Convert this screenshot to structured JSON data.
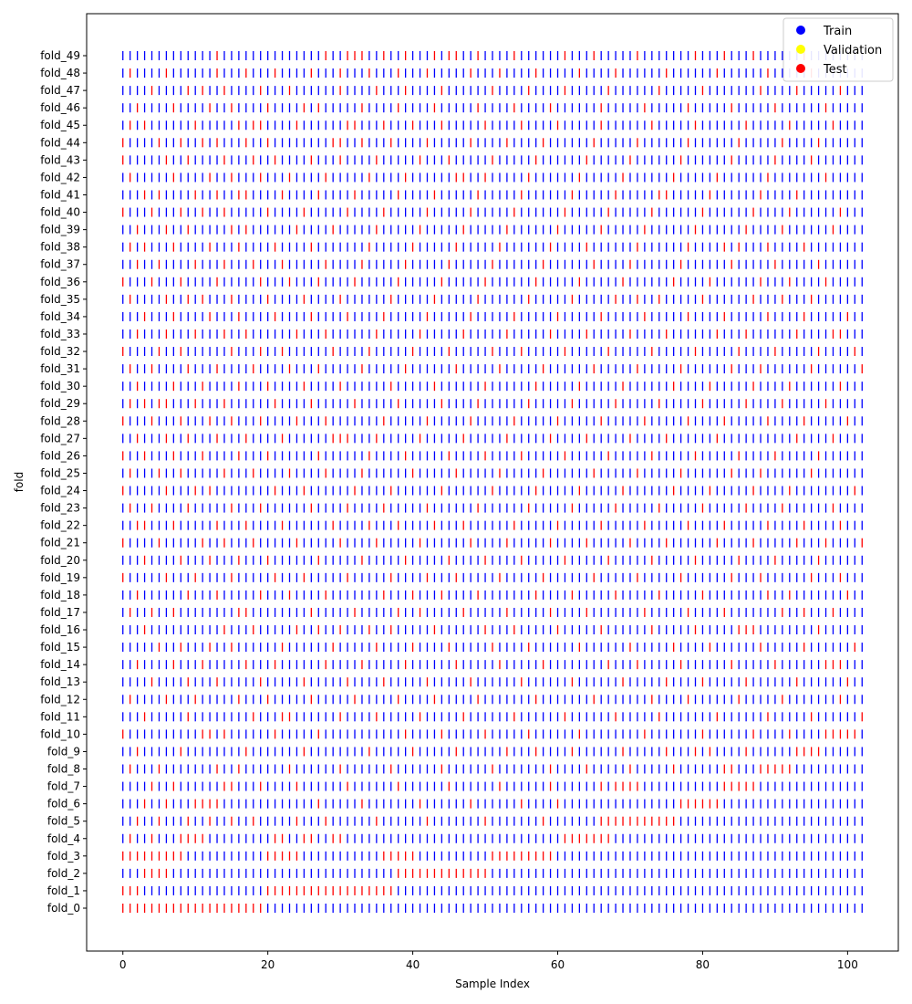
{
  "chart_data": {
    "type": "scatter",
    "marker": "vertical-line",
    "title": "",
    "xlabel": "Sample Index",
    "ylabel": "fold",
    "xlim": [
      -5,
      107
    ],
    "xticks": [
      0,
      20,
      40,
      60,
      80,
      100
    ],
    "n_samples": 103,
    "grid": false,
    "legend": {
      "placement": "top-right",
      "entries": [
        {
          "label": "Train",
          "color": "#0000ff"
        },
        {
          "label": "Validation",
          "color": "#ffff00"
        },
        {
          "label": "Test",
          "color": "#ff0000"
        }
      ]
    },
    "colors": {
      "train": "#0000ff",
      "validation": "#ffff00",
      "test": "#ff0000"
    },
    "categories": [
      "fold_0",
      "fold_1",
      "fold_2",
      "fold_3",
      "fold_4",
      "fold_5",
      "fold_6",
      "fold_7",
      "fold_8",
      "fold_9",
      "fold_10",
      "fold_11",
      "fold_12",
      "fold_13",
      "fold_14",
      "fold_15",
      "fold_16",
      "fold_17",
      "fold_18",
      "fold_19",
      "fold_20",
      "fold_21",
      "fold_22",
      "fold_23",
      "fold_24",
      "fold_25",
      "fold_26",
      "fold_27",
      "fold_28",
      "fold_29",
      "fold_30",
      "fold_31",
      "fold_32",
      "fold_33",
      "fold_34",
      "fold_35",
      "fold_36",
      "fold_37",
      "fold_38",
      "fold_39",
      "fold_40",
      "fold_41",
      "fold_42",
      "fold_43",
      "fold_44",
      "fold_45",
      "fold_46",
      "fold_47",
      "fold_48",
      "fold_49"
    ],
    "test_indices": [
      [
        0,
        1,
        2,
        3,
        4,
        5,
        6,
        7,
        8,
        9,
        10,
        11,
        12,
        13,
        14,
        15,
        16,
        17,
        18,
        19
      ],
      [
        0,
        1,
        2,
        20,
        21,
        22,
        23,
        24,
        25,
        26,
        27,
        28,
        29,
        30,
        31,
        32,
        33,
        34,
        35,
        36,
        37
      ],
      [
        3,
        4,
        5,
        6,
        38,
        39,
        40,
        41,
        42,
        43,
        44,
        45,
        46,
        47,
        48,
        49,
        50
      ],
      [
        0,
        1,
        2,
        3,
        4,
        5,
        6,
        7,
        8,
        20,
        21,
        22,
        23,
        24,
        36,
        37,
        38,
        39,
        40,
        51,
        52,
        53,
        54,
        55,
        56,
        57,
        58,
        59
      ],
      [
        1,
        4,
        8,
        9,
        10,
        11,
        21,
        22,
        25,
        26,
        29,
        30,
        61,
        62,
        63,
        64,
        65,
        66,
        67
      ],
      [
        2,
        5,
        9,
        12,
        15,
        18,
        24,
        28,
        35,
        42,
        50,
        58,
        66,
        67,
        68,
        69,
        70,
        71,
        72,
        73,
        74,
        75,
        76
      ],
      [
        3,
        6,
        10,
        11,
        12,
        13,
        27,
        33,
        41,
        48,
        55,
        60,
        77,
        78,
        79,
        80,
        81,
        82
      ],
      [
        4,
        7,
        14,
        15,
        19,
        24,
        31,
        38,
        45,
        52,
        59,
        66,
        68,
        69,
        70,
        71,
        83,
        84,
        85,
        86,
        87
      ],
      [
        1,
        5,
        13,
        16,
        23,
        30,
        37,
        44,
        51,
        59,
        64,
        70,
        76,
        83,
        84,
        88,
        89,
        90,
        91,
        92
      ],
      [
        2,
        8,
        17,
        25,
        34,
        40,
        46,
        53,
        57,
        62,
        69,
        75,
        79,
        81,
        86,
        93,
        94,
        95,
        96
      ],
      [
        0,
        11,
        12,
        14,
        21,
        27,
        39,
        44,
        50,
        56,
        63,
        72,
        80,
        87,
        92,
        97,
        98,
        99,
        100,
        101
      ],
      [
        3,
        9,
        18,
        22,
        23,
        30,
        35,
        41,
        47,
        54,
        61,
        68,
        74,
        82,
        89,
        95,
        102
      ],
      [
        1,
        6,
        10,
        16,
        20,
        26,
        32,
        38,
        43,
        49,
        57,
        65,
        73,
        78,
        85,
        91,
        99
      ],
      [
        4,
        9,
        13,
        19,
        25,
        31,
        36,
        42,
        48,
        55,
        62,
        69,
        75,
        80,
        86,
        93,
        100
      ],
      [
        2,
        7,
        11,
        17,
        21,
        28,
        33,
        39,
        46,
        52,
        58,
        67,
        71,
        77,
        84,
        90,
        97,
        98,
        99
      ],
      [
        5,
        8,
        12,
        15,
        22,
        29,
        35,
        40,
        45,
        51,
        56,
        63,
        70,
        76,
        81,
        88,
        94,
        101
      ],
      [
        3,
        14,
        18,
        24,
        27,
        30,
        34,
        37,
        43,
        50,
        54,
        60,
        66,
        73,
        79,
        85,
        86,
        87,
        96
      ],
      [
        1,
        4,
        7,
        16,
        17,
        26,
        32,
        38,
        41,
        47,
        53,
        59,
        64,
        72,
        78,
        83,
        91,
        94,
        98
      ],
      [
        2,
        9,
        13,
        19,
        23,
        28,
        36,
        40,
        44,
        49,
        57,
        62,
        68,
        74,
        80,
        89,
        92,
        100
      ],
      [
        0,
        6,
        10,
        15,
        21,
        25,
        31,
        37,
        42,
        46,
        52,
        58,
        65,
        71,
        77,
        84,
        88,
        95,
        99
      ],
      [
        3,
        8,
        12,
        16,
        20,
        27,
        33,
        39,
        45,
        50,
        55,
        61,
        67,
        73,
        79,
        85,
        90,
        96
      ],
      [
        0,
        5,
        11,
        14,
        18,
        24,
        30,
        35,
        41,
        48,
        53,
        59,
        64,
        70,
        75,
        82,
        87,
        93,
        97,
        102
      ],
      [
        2,
        3,
        7,
        13,
        17,
        22,
        29,
        34,
        38,
        43,
        47,
        54,
        60,
        66,
        72,
        78,
        83,
        89,
        94,
        99
      ],
      [
        1,
        4,
        9,
        15,
        19,
        26,
        31,
        36,
        42,
        49,
        56,
        62,
        68,
        74,
        80,
        86,
        91,
        98
      ],
      [
        0,
        6,
        10,
        12,
        21,
        25,
        32,
        37,
        44,
        51,
        57,
        63,
        69,
        76,
        81,
        87,
        92,
        101
      ],
      [
        1,
        5,
        8,
        14,
        18,
        23,
        28,
        33,
        40,
        46,
        52,
        58,
        65,
        71,
        77,
        84,
        88,
        95
      ],
      [
        0,
        3,
        7,
        11,
        16,
        20,
        27,
        34,
        39,
        45,
        50,
        55,
        61,
        67,
        73,
        79,
        85,
        90,
        96
      ],
      [
        2,
        6,
        9,
        13,
        17,
        22,
        29,
        30,
        31,
        35,
        41,
        47,
        53,
        59,
        64,
        70,
        75,
        82,
        93,
        98
      ],
      [
        0,
        4,
        8,
        12,
        15,
        19,
        24,
        28,
        36,
        42,
        48,
        54,
        60,
        66,
        72,
        78,
        83,
        89,
        94,
        100
      ],
      [
        1,
        3,
        5,
        6,
        10,
        14,
        21,
        26,
        32,
        38,
        44,
        49,
        56,
        62,
        68,
        74,
        80,
        86,
        91,
        97
      ],
      [
        2,
        7,
        11,
        16,
        20,
        25,
        30,
        37,
        43,
        50,
        57,
        63,
        69,
        76,
        81,
        87,
        92,
        99
      ],
      [
        1,
        4,
        9,
        13,
        18,
        23,
        27,
        33,
        39,
        46,
        52,
        58,
        65,
        71,
        77,
        84,
        88,
        95,
        102
      ],
      [
        0,
        5,
        8,
        15,
        19,
        22,
        29,
        34,
        40,
        45,
        51,
        55,
        61,
        67,
        73,
        79,
        85,
        90,
        96,
        101
      ],
      [
        2,
        6,
        10,
        14,
        17,
        24,
        28,
        35,
        41,
        47,
        53,
        59,
        64,
        70,
        75,
        82,
        86,
        93,
        98,
        99
      ],
      [
        3,
        7,
        12,
        16,
        21,
        26,
        31,
        36,
        42,
        48,
        54,
        60,
        66,
        72,
        78,
        83,
        89,
        94,
        100
      ],
      [
        1,
        6,
        9,
        11,
        15,
        20,
        25,
        30,
        37,
        43,
        49,
        56,
        62,
        68,
        71,
        74,
        80,
        87,
        91,
        95
      ],
      [
        0,
        4,
        8,
        13,
        19,
        23,
        27,
        32,
        38,
        44,
        50,
        57,
        63,
        69,
        76,
        81,
        88,
        92,
        97
      ],
      [
        2,
        5,
        10,
        14,
        18,
        22,
        28,
        33,
        39,
        45,
        51,
        58,
        65,
        70,
        77,
        84,
        90,
        96
      ],
      [
        1,
        3,
        7,
        12,
        16,
        21,
        26,
        34,
        40,
        46,
        52,
        59,
        64,
        71,
        78,
        83,
        85,
        89,
        94
      ],
      [
        2,
        6,
        9,
        15,
        17,
        24,
        29,
        35,
        41,
        47,
        53,
        60,
        66,
        72,
        79,
        86,
        91,
        98
      ],
      [
        0,
        4,
        8,
        11,
        14,
        20,
        25,
        31,
        36,
        42,
        48,
        54,
        61,
        67,
        73,
        80,
        87,
        92,
        99
      ],
      [
        3,
        5,
        10,
        13,
        16,
        17,
        22,
        27,
        32,
        38,
        43,
        49,
        55,
        62,
        68,
        74,
        75,
        81,
        88,
        93
      ],
      [
        1,
        7,
        12,
        15,
        19,
        23,
        28,
        34,
        39,
        46,
        47,
        50,
        56,
        63,
        69,
        76,
        82,
        89,
        97
      ],
      [
        0,
        6,
        9,
        14,
        18,
        21,
        26,
        30,
        35,
        41,
        45,
        51,
        57,
        64,
        70,
        77,
        84,
        90,
        95
      ],
      [
        0,
        5,
        8,
        11,
        13,
        17,
        20,
        29,
        30,
        33,
        37,
        42,
        48,
        53,
        58,
        65,
        71,
        78,
        85,
        91,
        96
      ],
      [
        1,
        3,
        10,
        16,
        18,
        19,
        24,
        31,
        32,
        36,
        40,
        44,
        50,
        55,
        60,
        66,
        73,
        79,
        86,
        92,
        98
      ],
      [
        2,
        7,
        12,
        15,
        20,
        25,
        27,
        33,
        38,
        43,
        49,
        54,
        59,
        66,
        72,
        78,
        84,
        90,
        97
      ],
      [
        4,
        9,
        11,
        14,
        19,
        23,
        30,
        35,
        39,
        44,
        51,
        56,
        61,
        67,
        74,
        80,
        88,
        93,
        99
      ],
      [
        1,
        6,
        13,
        17,
        21,
        26,
        30,
        34,
        38,
        42,
        48,
        52,
        57,
        63,
        68,
        75,
        82,
        89,
        95
      ],
      [
        13,
        28,
        31,
        32,
        33,
        36,
        39,
        43,
        45,
        46,
        49,
        54,
        61,
        65,
        71,
        79,
        83,
        87,
        94
      ]
    ]
  }
}
